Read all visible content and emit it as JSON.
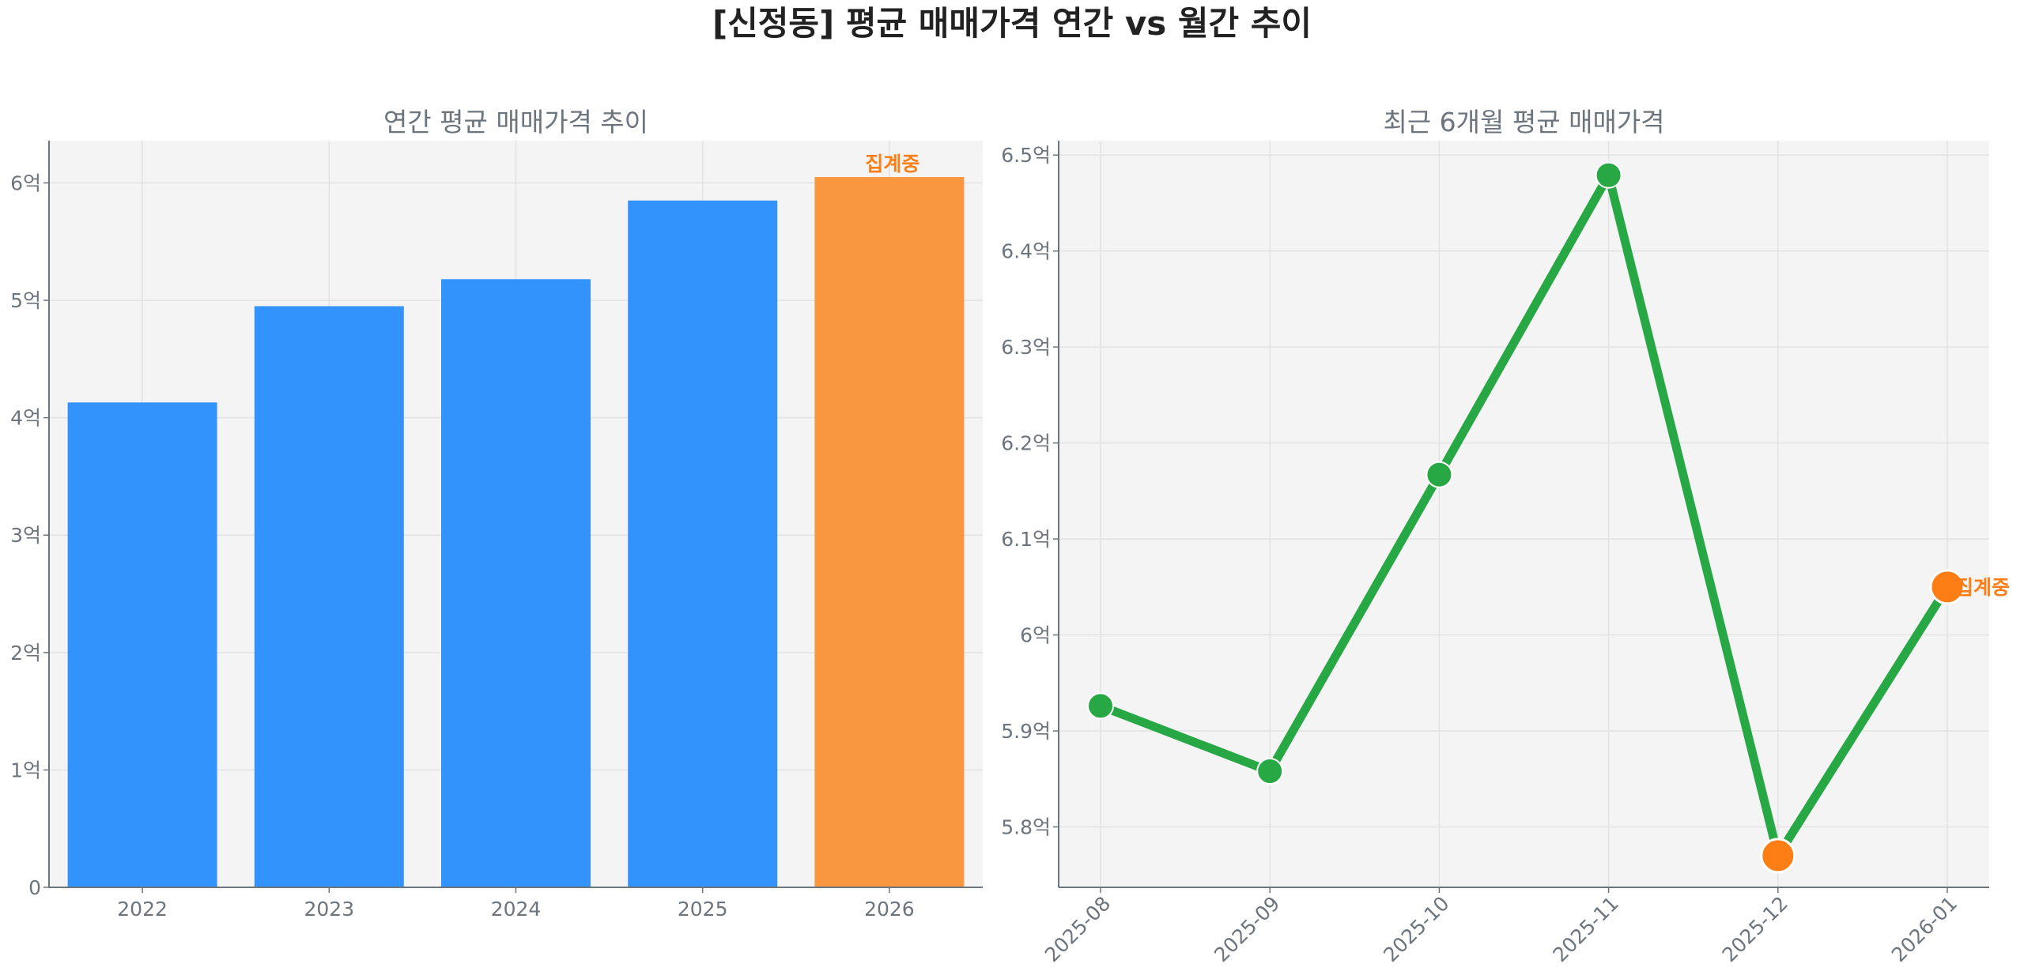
{
  "title": "[신정동] 평균 매매가격 연간 vs 월간 추이",
  "colors": {
    "bar": "#3193fb",
    "bar_partial": "#f99740",
    "line": "#28a745",
    "partial_marker": "#fd7e14",
    "partial_label": "#fd7e14",
    "text": "#6c757d",
    "title": "#222222",
    "plot_bg": "#f4f4f4"
  },
  "chart_data": [
    {
      "type": "bar",
      "title": "연간 평균 매매가격 추이",
      "categories": [
        "2022",
        "2023",
        "2024",
        "2025",
        "2026"
      ],
      "values": [
        4.13,
        4.95,
        5.18,
        5.85,
        6.05
      ],
      "value_unit": "억",
      "partial_index": 4,
      "annotation": "집계중",
      "ylim": [
        0,
        6.36
      ],
      "yticks": [
        0,
        1,
        2,
        3,
        4,
        5,
        6
      ],
      "ytick_labels": [
        "0",
        "1억",
        "2억",
        "3억",
        "4억",
        "5억",
        "6억"
      ],
      "grid": true
    },
    {
      "type": "line",
      "title": "최근 6개월 평균 매매가격",
      "categories": [
        "2025-08",
        "2025-09",
        "2025-10",
        "2025-11",
        "2025-12",
        "2026-01"
      ],
      "values": [
        5.926,
        5.858,
        6.167,
        6.479,
        5.77,
        6.05
      ],
      "value_unit": "억",
      "highlight_indices": [
        4,
        5
      ],
      "annotation": "집계중",
      "annotation_index": 5,
      "ylim": [
        5.737,
        6.515
      ],
      "yticks": [
        5.8,
        5.9,
        6.0,
        6.1,
        6.2,
        6.3,
        6.4,
        6.5
      ],
      "ytick_labels": [
        "5.8억",
        "5.9억",
        "6억",
        "6.1억",
        "6.2억",
        "6.3억",
        "6.4억",
        "6.5억"
      ],
      "grid": true
    }
  ]
}
